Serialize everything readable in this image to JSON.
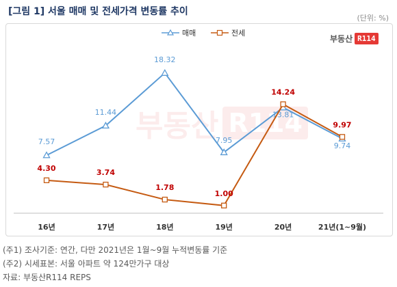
{
  "header": {
    "title": "[그림 1] 서울 매매 및 전세가격 변동률 추이",
    "unit": "(단위: %)"
  },
  "logo": {
    "text": "부동산",
    "badge": "R114"
  },
  "watermark": {
    "text": "부동산",
    "badge": "R114"
  },
  "colors": {
    "sale": "#5b9bd5",
    "jeonse": "#c55a11",
    "title": "#1f3864"
  },
  "chart_data": {
    "type": "line",
    "categories": [
      "16년",
      "17년",
      "18년",
      "19년",
      "20년",
      "21년(1~9월)"
    ],
    "series": [
      {
        "name": "매매",
        "values": [
          7.57,
          11.44,
          18.32,
          7.95,
          13.81,
          9.74
        ],
        "labels": [
          "7.57",
          "11.44",
          "18.32",
          "7.95",
          "13.81",
          "9.74"
        ]
      },
      {
        "name": "전세",
        "values": [
          4.3,
          3.74,
          1.78,
          1.0,
          14.24,
          9.97
        ],
        "labels": [
          "4.30",
          "3.74",
          "1.78",
          "1.00",
          "14.24",
          "9.97"
        ]
      }
    ],
    "ylim": [
      0,
      20
    ],
    "grid": false,
    "legend": "top-right"
  },
  "notes": [
    "(주1) 조사기준: 연간, 다만 2021년은 1월~9월 누적변동률 기준",
    "(주2) 시세표본: 서울 아파트 약 124만가구 대상",
    "자료: 부동산R114 REPS"
  ]
}
